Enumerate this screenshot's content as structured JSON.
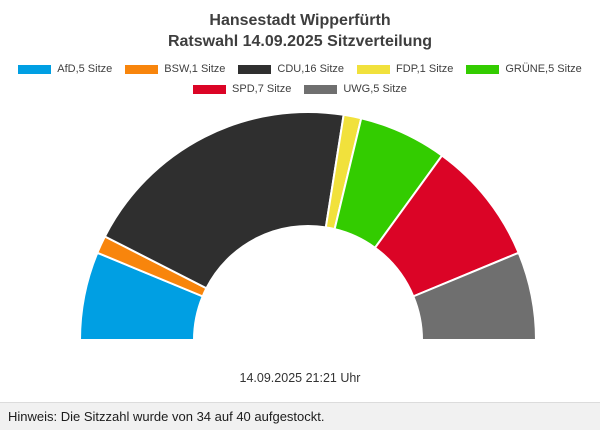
{
  "title": {
    "line1": "Hansestadt Wipperfürth",
    "line2": "Ratswahl 14.09.2025 Sitzverteilung"
  },
  "timestamp": "14.09.2025 21:21 Uhr",
  "footer": {
    "note": "Hinweis: Die Sitzzahl wurde von 34 auf 40 aufgestockt."
  },
  "chart_data": {
    "type": "pie",
    "subtype": "half-donut",
    "title": "Hansestadt Wipperfürth Ratswahl 14.09.2025 Sitzverteilung",
    "total_seats": 40,
    "unit": "Sitze",
    "start_angle_deg": 180,
    "end_angle_deg": 0,
    "legend_position": "top",
    "series": [
      {
        "name": "AfD",
        "seats": 5,
        "label": "AfD,5 Sitze",
        "color": "#009FE3"
      },
      {
        "name": "BSW",
        "seats": 1,
        "label": "BSW,1 Sitze",
        "color": "#F8850C"
      },
      {
        "name": "CDU",
        "seats": 16,
        "label": "CDU,16 Sitze",
        "color": "#2F2F2F"
      },
      {
        "name": "FDP",
        "seats": 1,
        "label": "FDP,1 Sitze",
        "color": "#F1E13C"
      },
      {
        "name": "GRÜNE",
        "seats": 5,
        "label": "GRÜNE,5 Sitze",
        "color": "#33CC00"
      },
      {
        "name": "SPD",
        "seats": 7,
        "label": "SPD,7 Sitze",
        "color": "#DB0426"
      },
      {
        "name": "UWG",
        "seats": 5,
        "label": "UWG,5 Sitze",
        "color": "#6F6F6F"
      }
    ],
    "legend_rows": [
      [
        "AfD",
        "BSW",
        "CDU",
        "FDP",
        "GRÜNE"
      ],
      [
        "SPD",
        "UWG"
      ]
    ]
  }
}
